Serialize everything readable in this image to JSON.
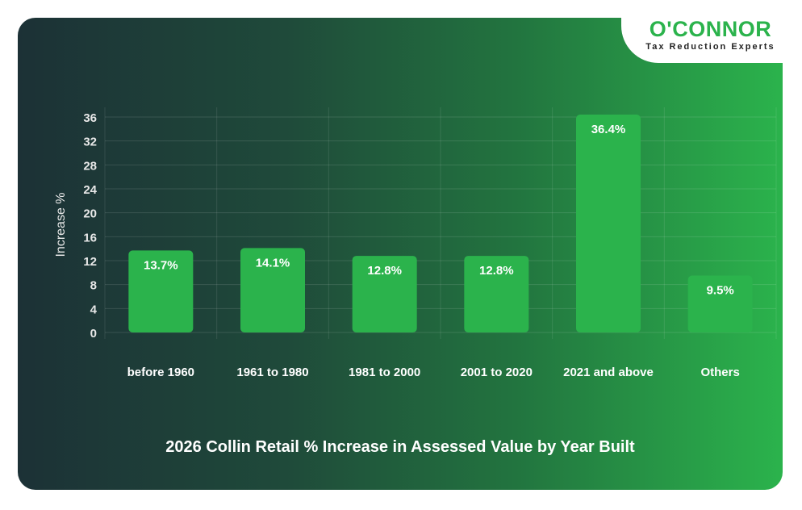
{
  "brand": {
    "name": "O'CONNOR",
    "tagline": "Tax Reduction Experts",
    "color": "#2bb34c"
  },
  "chart_data": {
    "type": "bar",
    "title": "2026 Collin Retail % Increase in Assessed Value by Year Built",
    "xlabel": "",
    "ylabel": "Increase %",
    "ylim": [
      0,
      36
    ],
    "yticks": [
      0,
      4,
      8,
      12,
      16,
      20,
      24,
      28,
      32,
      36
    ],
    "grid": true,
    "categories": [
      "before 1960",
      "1961 to 1980",
      "1981 to 2000",
      "2001 to 2020",
      "2021 and above",
      "Others"
    ],
    "values": [
      13.7,
      14.1,
      12.8,
      12.8,
      36.4,
      9.5
    ],
    "data_labels": [
      "13.7%",
      "14.1%",
      "12.8%",
      "12.8%",
      "36.4%",
      "9.5%"
    ],
    "bar_color": "#2bb34c"
  }
}
